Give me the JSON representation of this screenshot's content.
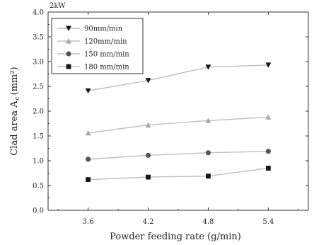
{
  "chart_data": {
    "type": "line",
    "title": "2kW",
    "xlabel": "Powder feeding rate (g/min)",
    "ylabel": "Clad area A_c (mm²)",
    "ylabel_parts": {
      "main": "Clad area A",
      "sub": "c",
      "units": "(mm²)"
    },
    "xlim": [
      3.2,
      5.8
    ],
    "ylim": [
      0,
      4.0
    ],
    "x": [
      3.6,
      4.2,
      4.8,
      5.4
    ],
    "x_tick_labels": [
      "3.6",
      "4.2",
      "4.8",
      "5.4"
    ],
    "y_ticks": [
      0.0,
      0.5,
      1.0,
      1.5,
      2.0,
      2.5,
      3.0,
      3.5,
      4.0
    ],
    "y_tick_labels": [
      "0.0",
      "0.5",
      "1.0",
      "1.5",
      "2.0",
      "2.5",
      "3.0",
      "3.5",
      "4.0"
    ],
    "grid": false,
    "legend_position": "top-left",
    "series": [
      {
        "name": "90mm/min",
        "marker": "triangle-down",
        "color": "#1a1a1a",
        "values": [
          2.41,
          2.62,
          2.89,
          2.93
        ]
      },
      {
        "name": "120mm/min",
        "marker": "triangle-up",
        "color": "#a9a9a9",
        "values": [
          1.56,
          1.72,
          1.81,
          1.88
        ]
      },
      {
        "name": "150 mm/min",
        "marker": "circle",
        "color": "#555555",
        "values": [
          1.03,
          1.11,
          1.16,
          1.19
        ]
      },
      {
        "name": "180 mm/min",
        "marker": "square",
        "color": "#151515",
        "values": [
          0.62,
          0.67,
          0.69,
          0.85
        ]
      }
    ],
    "line_color": "#bfbfbf"
  }
}
